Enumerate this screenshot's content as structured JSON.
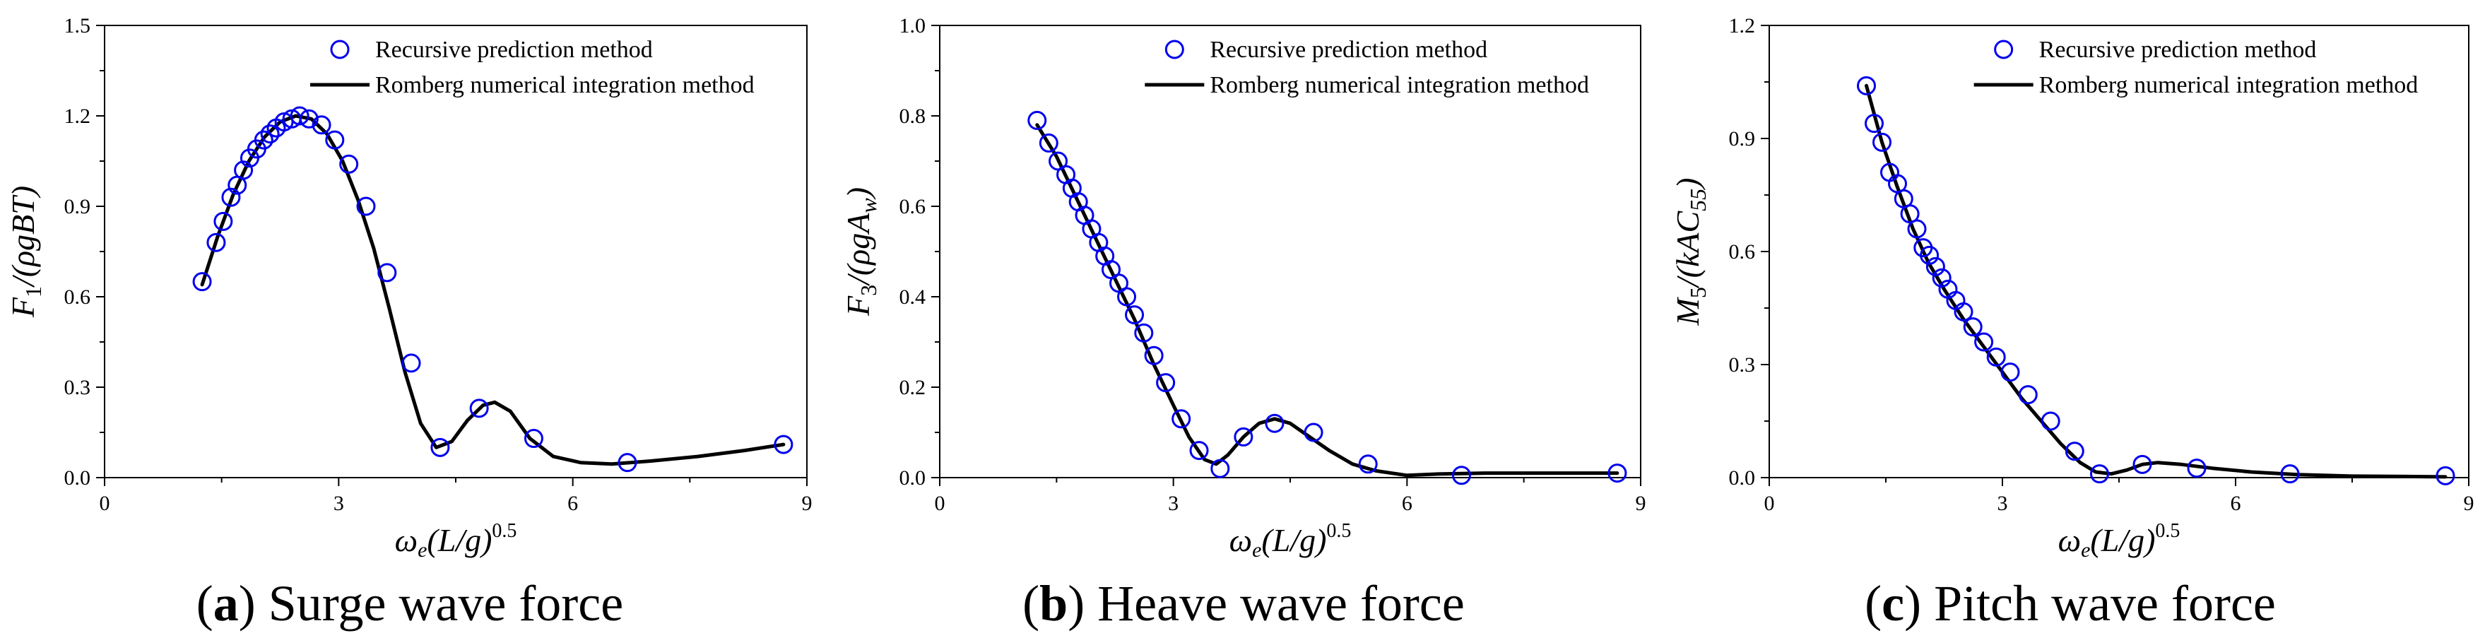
{
  "chart_data": [
    {
      "type": "scatter",
      "panel": "(a)",
      "caption_letter": "a",
      "caption_text": "Surge wave force",
      "ylabel_parts": [
        "F",
        "1",
        "/(ρgBT)"
      ],
      "xlabel_parts": [
        "ω",
        "e",
        "(L/g)",
        "0.5"
      ],
      "xlim": [
        0,
        9
      ],
      "ylim": [
        0,
        1.5
      ],
      "xticks": [
        "0",
        "3",
        "6",
        "9"
      ],
      "xtick_values": [
        0,
        3,
        6,
        9
      ],
      "yticks": [
        "0.0",
        "0.3",
        "0.6",
        "0.9",
        "1.2",
        "1.5"
      ],
      "ytick_values": [
        0,
        0.3,
        0.6,
        0.9,
        1.2,
        1.5
      ],
      "legend": [
        "Recursive prediction method",
        "Romberg numerical integration method"
      ],
      "series": [
        {
          "name": "Recursive prediction method",
          "marker": "circle",
          "color": "#0000ee",
          "x": [
            1.25,
            1.43,
            1.52,
            1.62,
            1.7,
            1.78,
            1.86,
            1.95,
            2.04,
            2.12,
            2.2,
            2.3,
            2.4,
            2.5,
            2.62,
            2.78,
            2.95,
            3.13,
            3.35,
            3.62,
            3.93,
            4.3,
            4.8,
            5.5,
            6.7,
            8.7
          ],
          "y": [
            0.65,
            0.78,
            0.85,
            0.93,
            0.97,
            1.02,
            1.06,
            1.09,
            1.12,
            1.14,
            1.16,
            1.18,
            1.19,
            1.2,
            1.19,
            1.17,
            1.12,
            1.04,
            0.9,
            0.68,
            0.38,
            0.1,
            0.23,
            0.13,
            0.05,
            0.11
          ]
        },
        {
          "name": "Romberg numerical integration method",
          "marker": "line",
          "color": "#000000",
          "x": [
            1.25,
            1.45,
            1.65,
            1.85,
            2.05,
            2.25,
            2.45,
            2.65,
            2.85,
            3.05,
            3.25,
            3.45,
            3.65,
            3.85,
            4.05,
            4.25,
            4.45,
            4.65,
            4.85,
            5.0,
            5.2,
            5.45,
            5.75,
            6.1,
            6.5,
            7.0,
            7.6,
            8.2,
            8.7
          ],
          "y": [
            0.64,
            0.8,
            0.94,
            1.05,
            1.13,
            1.18,
            1.2,
            1.19,
            1.14,
            1.05,
            0.92,
            0.76,
            0.56,
            0.35,
            0.18,
            0.1,
            0.12,
            0.19,
            0.24,
            0.25,
            0.22,
            0.13,
            0.07,
            0.05,
            0.045,
            0.055,
            0.07,
            0.09,
            0.11
          ]
        }
      ]
    },
    {
      "type": "scatter",
      "panel": "(b)",
      "caption_letter": "b",
      "caption_text": "Heave wave force",
      "ylabel_parts": [
        "F",
        "3",
        "/(ρgA",
        "w",
        ")"
      ],
      "xlabel_parts": [
        "ω",
        "e",
        "(L/g)",
        "0.5"
      ],
      "xlim": [
        0,
        9
      ],
      "ylim": [
        0,
        1.0
      ],
      "xticks": [
        "0",
        "3",
        "6",
        "9"
      ],
      "xtick_values": [
        0,
        3,
        6,
        9
      ],
      "yticks": [
        "0.0",
        "0.2",
        "0.4",
        "0.6",
        "0.8",
        "1.0"
      ],
      "ytick_values": [
        0,
        0.2,
        0.4,
        0.6,
        0.8,
        1.0
      ],
      "legend": [
        "Recursive prediction method",
        "Romberg numerical integration method"
      ],
      "series": [
        {
          "name": "Recursive prediction method",
          "marker": "circle",
          "color": "#0000ee",
          "x": [
            1.25,
            1.4,
            1.52,
            1.62,
            1.7,
            1.78,
            1.86,
            1.95,
            2.04,
            2.12,
            2.2,
            2.3,
            2.4,
            2.5,
            2.62,
            2.75,
            2.9,
            3.1,
            3.33,
            3.6,
            3.9,
            4.3,
            4.8,
            5.5,
            6.7,
            8.7
          ],
          "y": [
            0.79,
            0.74,
            0.7,
            0.67,
            0.64,
            0.61,
            0.58,
            0.55,
            0.52,
            0.49,
            0.46,
            0.43,
            0.4,
            0.36,
            0.32,
            0.27,
            0.21,
            0.13,
            0.06,
            0.02,
            0.09,
            0.12,
            0.1,
            0.03,
            0.005,
            0.01
          ]
        },
        {
          "name": "Romberg numerical integration method",
          "marker": "line",
          "color": "#000000",
          "x": [
            1.25,
            1.5,
            1.75,
            2.0,
            2.25,
            2.5,
            2.75,
            3.0,
            3.2,
            3.4,
            3.55,
            3.7,
            3.9,
            4.1,
            4.3,
            4.5,
            4.75,
            5.0,
            5.3,
            5.6,
            6.0,
            6.4,
            7.0,
            7.8,
            8.7
          ],
          "y": [
            0.78,
            0.71,
            0.62,
            0.53,
            0.44,
            0.35,
            0.25,
            0.16,
            0.09,
            0.04,
            0.03,
            0.05,
            0.09,
            0.12,
            0.13,
            0.12,
            0.09,
            0.06,
            0.03,
            0.015,
            0.005,
            0.008,
            0.01,
            0.01,
            0.01
          ]
        }
      ]
    },
    {
      "type": "scatter",
      "panel": "(c)",
      "caption_letter": "c",
      "caption_text": "Pitch wave force",
      "ylabel_parts": [
        "M",
        "5",
        "/(kAC",
        "55",
        ")"
      ],
      "xlabel_parts": [
        "ω",
        "e",
        "(L/g)",
        "0.5"
      ],
      "xlim": [
        0,
        9
      ],
      "ylim": [
        0,
        1.2
      ],
      "xticks": [
        "0",
        "3",
        "6",
        "9"
      ],
      "xtick_values": [
        0,
        3,
        6,
        9
      ],
      "yticks": [
        "0.0",
        "0.3",
        "0.6",
        "0.9",
        "1.2"
      ],
      "ytick_values": [
        0,
        0.3,
        0.6,
        0.9,
        1.2
      ],
      "legend": [
        "Recursive prediction method",
        "Romberg numerical integration method"
      ],
      "series": [
        {
          "name": "Recursive prediction method",
          "marker": "circle",
          "color": "#0000ee",
          "x": [
            1.25,
            1.35,
            1.45,
            1.55,
            1.65,
            1.73,
            1.81,
            1.9,
            1.98,
            2.06,
            2.14,
            2.22,
            2.3,
            2.4,
            2.5,
            2.62,
            2.76,
            2.92,
            3.1,
            3.33,
            3.62,
            3.93,
            4.25,
            4.8,
            5.5,
            6.7,
            8.7
          ],
          "y": [
            1.04,
            0.94,
            0.89,
            0.81,
            0.78,
            0.74,
            0.7,
            0.66,
            0.61,
            0.59,
            0.56,
            0.53,
            0.5,
            0.47,
            0.44,
            0.4,
            0.36,
            0.32,
            0.28,
            0.22,
            0.15,
            0.07,
            0.01,
            0.035,
            0.025,
            0.01,
            0.005
          ]
        },
        {
          "name": "Romberg numerical integration method",
          "marker": "line",
          "color": "#000000",
          "x": [
            1.25,
            1.45,
            1.65,
            1.85,
            2.05,
            2.25,
            2.5,
            2.75,
            3.0,
            3.25,
            3.5,
            3.75,
            4.0,
            4.2,
            4.4,
            4.6,
            4.8,
            5.0,
            5.3,
            5.7,
            6.2,
            6.8,
            7.5,
            8.2,
            8.7
          ],
          "y": [
            1.04,
            0.89,
            0.77,
            0.66,
            0.57,
            0.5,
            0.42,
            0.35,
            0.28,
            0.21,
            0.15,
            0.09,
            0.04,
            0.015,
            0.01,
            0.02,
            0.035,
            0.04,
            0.035,
            0.025,
            0.015,
            0.008,
            0.004,
            0.003,
            0.002
          ]
        }
      ]
    }
  ]
}
